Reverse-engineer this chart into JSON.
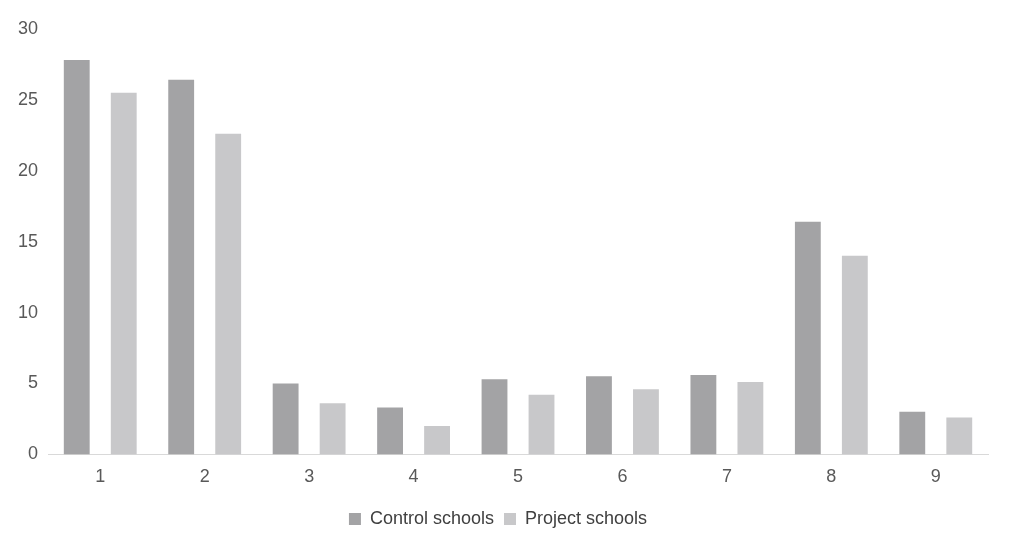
{
  "chart_data": {
    "type": "bar",
    "categories": [
      "1",
      "2",
      "3",
      "4",
      "5",
      "6",
      "7",
      "8",
      "9"
    ],
    "series": [
      {
        "name": "Control schools",
        "color": "#a3a3a5",
        "values": [
          27.8,
          26.4,
          5.0,
          3.3,
          5.3,
          5.5,
          5.6,
          16.4,
          3.0
        ]
      },
      {
        "name": "Project schools",
        "color": "#c8c8ca",
        "values": [
          25.5,
          22.6,
          3.6,
          2.0,
          4.2,
          4.6,
          5.1,
          14.0,
          2.6
        ]
      }
    ],
    "ylim": [
      0,
      30
    ],
    "yticks": [
      0,
      5,
      10,
      15,
      20,
      25,
      30
    ],
    "grid": false,
    "legend": "bottom"
  }
}
